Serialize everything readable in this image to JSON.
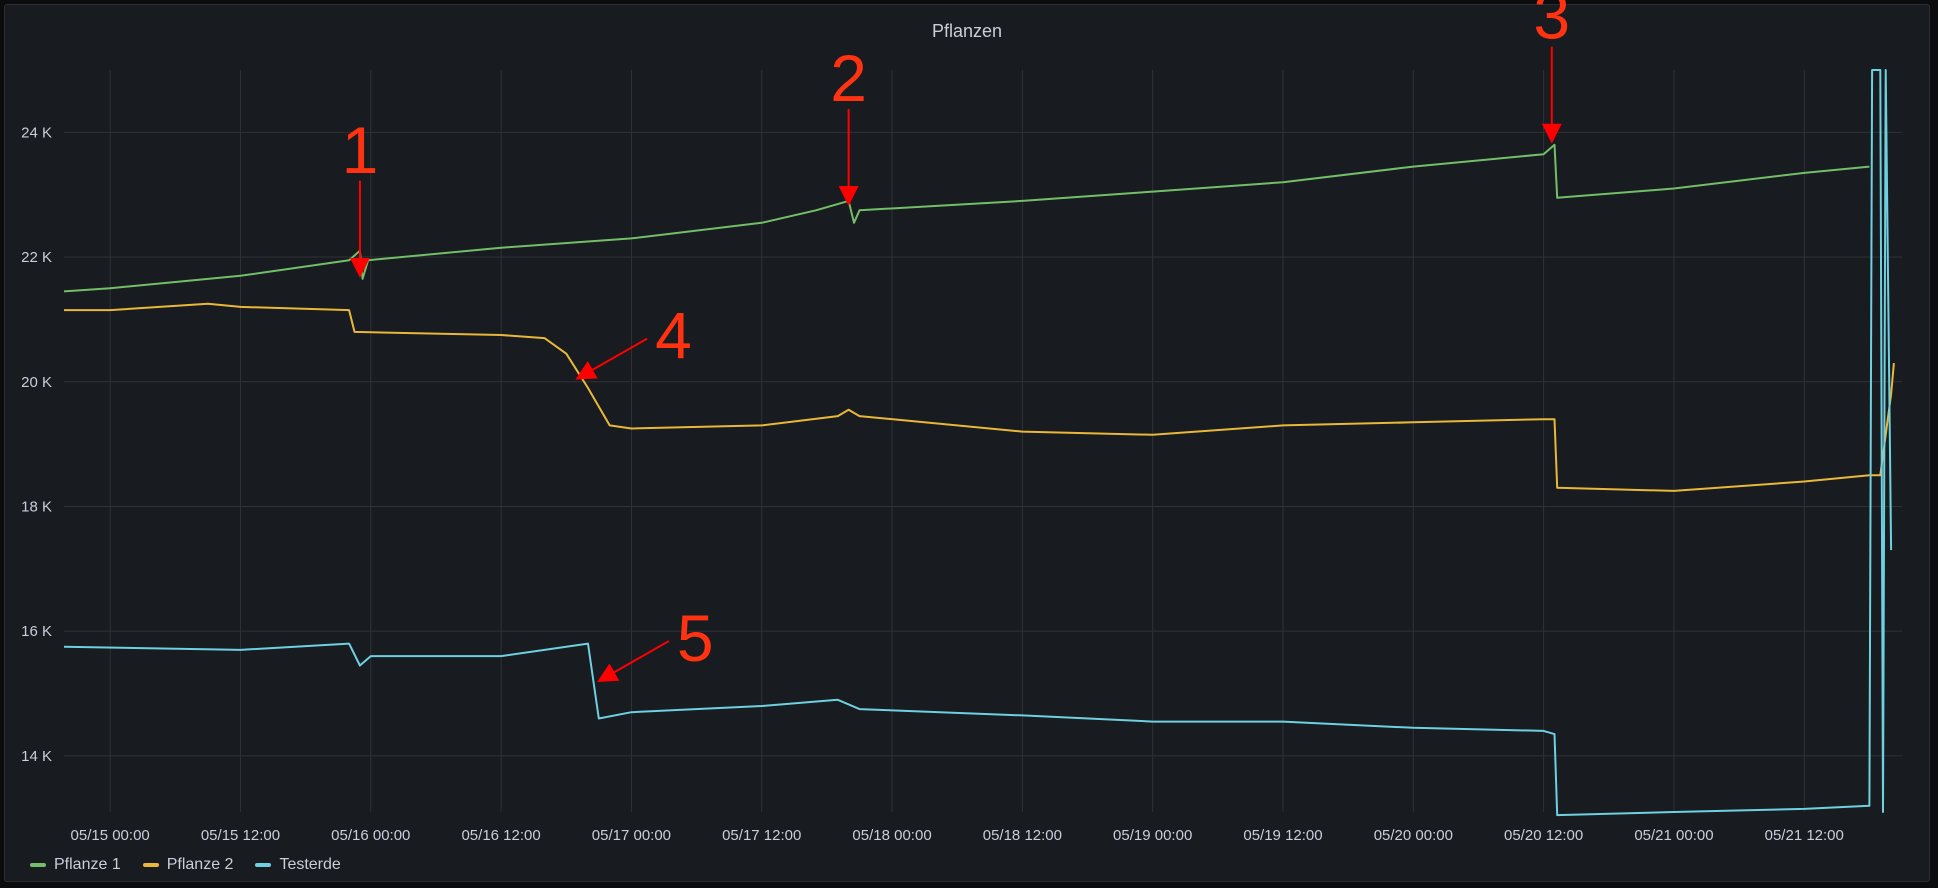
{
  "panel": {
    "title": "Pflanzen"
  },
  "chart_data": {
    "type": "line",
    "title": "Pflanzen",
    "x_ticks": [
      "05/15 00:00",
      "05/15 12:00",
      "05/16 00:00",
      "05/16 12:00",
      "05/17 00:00",
      "05/17 12:00",
      "05/18 00:00",
      "05/18 12:00",
      "05/19 00:00",
      "05/19 12:00",
      "05/20 00:00",
      "05/20 12:00",
      "05/21 00:00",
      "05/21 12:00"
    ],
    "xlim": [
      "05/14 19:45",
      "05/21 21:00"
    ],
    "y_ticks": [
      "24 K",
      "22 K",
      "20 K",
      "18 K",
      "16 K",
      "14 K"
    ],
    "ylim": [
      13100,
      25000
    ],
    "grid": true,
    "legend_position": "bottom-left",
    "series": [
      {
        "name": "Pflanze 1",
        "color": "#73bf69",
        "points": [
          [
            "05/14 19:45",
            21450
          ],
          [
            "05/15 00:00",
            21500
          ],
          [
            "05/15 12:00",
            21700
          ],
          [
            "05/15 22:00",
            21950
          ],
          [
            "05/15 23:00",
            22100
          ],
          [
            "05/15 23:15",
            21650
          ],
          [
            "05/15 23:45",
            21950
          ],
          [
            "05/16 12:00",
            22150
          ],
          [
            "05/17 00:00",
            22300
          ],
          [
            "05/17 12:00",
            22550
          ],
          [
            "05/17 17:00",
            22750
          ],
          [
            "05/17 20:00",
            22900
          ],
          [
            "05/17 20:30",
            22550
          ],
          [
            "05/17 21:00",
            22750
          ],
          [
            "05/18 12:00",
            22900
          ],
          [
            "05/19 00:00",
            23050
          ],
          [
            "05/19 12:00",
            23200
          ],
          [
            "05/20 00:00",
            23450
          ],
          [
            "05/20 12:00",
            23650
          ],
          [
            "05/20 13:00",
            23800
          ],
          [
            "05/20 13:15",
            22950
          ],
          [
            "05/21 00:00",
            23100
          ],
          [
            "05/21 12:00",
            23350
          ],
          [
            "05/21 18:00",
            23450
          ]
        ]
      },
      {
        "name": "Pflanze 2",
        "color": "#eab839",
        "points": [
          [
            "05/14 19:45",
            21150
          ],
          [
            "05/15 00:00",
            21150
          ],
          [
            "05/15 09:00",
            21250
          ],
          [
            "05/15 12:00",
            21200
          ],
          [
            "05/15 22:00",
            21150
          ],
          [
            "05/15 22:30",
            20800
          ],
          [
            "05/16 12:00",
            20750
          ],
          [
            "05/16 16:00",
            20700
          ],
          [
            "05/16 18:00",
            20450
          ],
          [
            "05/16 20:00",
            19900
          ],
          [
            "05/16 22:00",
            19300
          ],
          [
            "05/17 00:00",
            19250
          ],
          [
            "05/17 12:00",
            19300
          ],
          [
            "05/17 19:00",
            19450
          ],
          [
            "05/17 20:00",
            19550
          ],
          [
            "05/17 21:00",
            19450
          ],
          [
            "05/18 12:00",
            19200
          ],
          [
            "05/19 00:00",
            19150
          ],
          [
            "05/19 12:00",
            19300
          ],
          [
            "05/20 00:00",
            19350
          ],
          [
            "05/20 12:00",
            19400
          ],
          [
            "05/20 13:00",
            19400
          ],
          [
            "05/20 13:15",
            18300
          ],
          [
            "05/21 00:00",
            18250
          ],
          [
            "05/21 12:00",
            18400
          ],
          [
            "05/21 18:00",
            18500
          ],
          [
            "05/21 19:00",
            18500
          ],
          [
            "05/21 20:00",
            19800
          ],
          [
            "05/21 20:15",
            20300
          ]
        ]
      },
      {
        "name": "Testerde",
        "color": "#6ed0e0",
        "points": [
          [
            "05/14 19:45",
            15750
          ],
          [
            "05/15 12:00",
            15700
          ],
          [
            "05/15 22:00",
            15800
          ],
          [
            "05/15 23:00",
            15450
          ],
          [
            "05/16 00:00",
            15600
          ],
          [
            "05/16 12:00",
            15600
          ],
          [
            "05/16 20:00",
            15800
          ],
          [
            "05/16 20:30",
            15200
          ],
          [
            "05/16 21:00",
            14600
          ],
          [
            "05/17 00:00",
            14700
          ],
          [
            "05/17 12:00",
            14800
          ],
          [
            "05/17 19:00",
            14900
          ],
          [
            "05/17 21:00",
            14750
          ],
          [
            "05/18 12:00",
            14650
          ],
          [
            "05/19 00:00",
            14550
          ],
          [
            "05/19 12:00",
            14550
          ],
          [
            "05/20 00:00",
            14450
          ],
          [
            "05/20 12:00",
            14400
          ],
          [
            "05/20 13:00",
            14350
          ],
          [
            "05/20 13:15",
            13050
          ],
          [
            "05/21 00:00",
            13100
          ],
          [
            "05/21 12:00",
            13150
          ],
          [
            "05/21 18:00",
            13200
          ],
          [
            "05/21 18:15",
            25000
          ],
          [
            "05/21 19:00",
            25000
          ],
          [
            "05/21 19:15",
            13100
          ],
          [
            "05/21 19:30",
            25000
          ],
          [
            "05/21 20:00",
            17300
          ]
        ]
      }
    ],
    "annotations": [
      {
        "label": "1",
        "x": "05/15 23:00",
        "y": 21700
      },
      {
        "label": "2",
        "x": "05/17 20:00",
        "y": 22850
      },
      {
        "label": "3",
        "x": "05/20 12:45",
        "y": 23850
      },
      {
        "label": "4",
        "x": "05/16 19:00",
        "y": 20050
      },
      {
        "label": "5",
        "x": "05/16 21:00",
        "y": 15200
      }
    ]
  }
}
